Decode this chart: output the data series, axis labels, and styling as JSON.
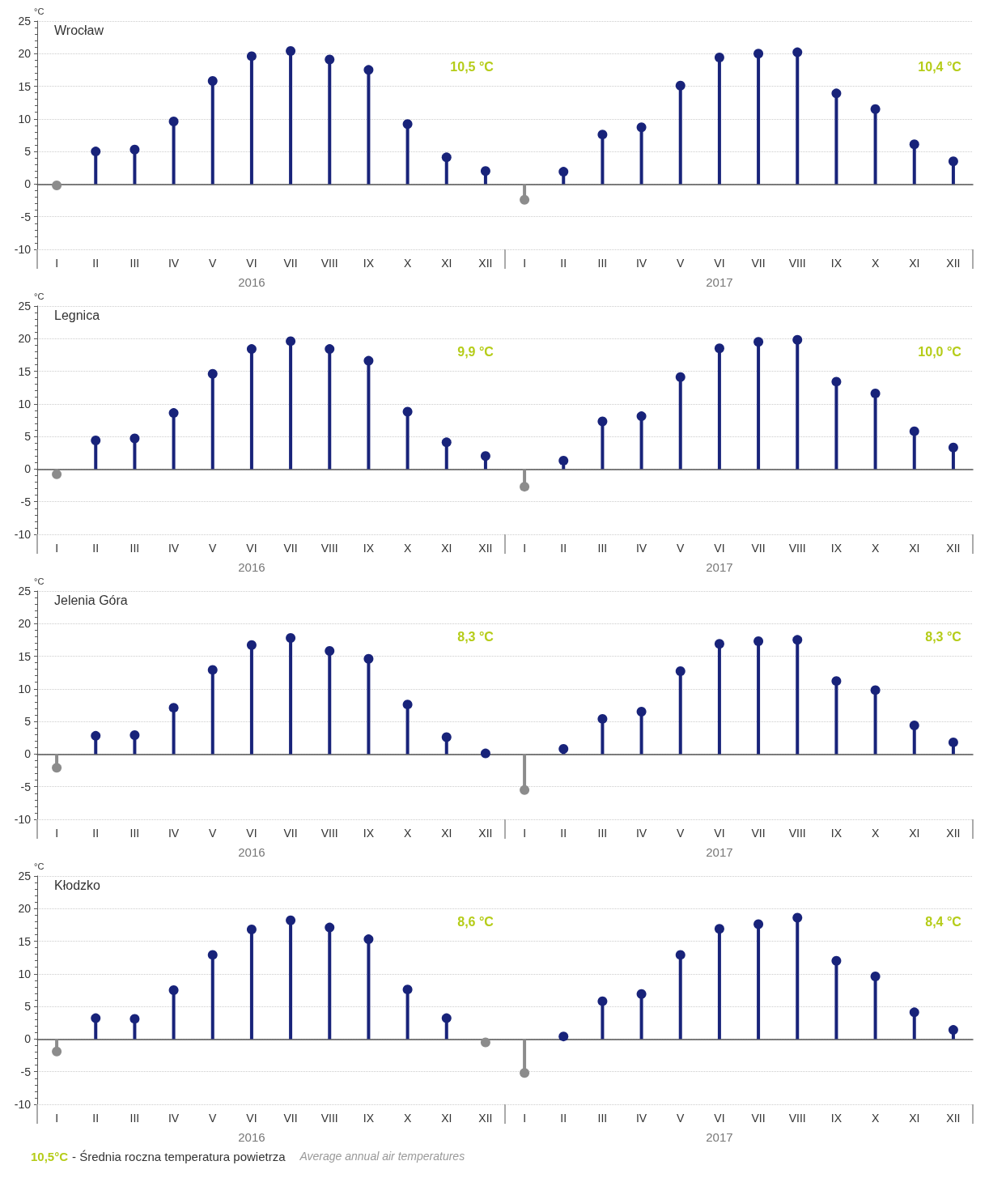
{
  "chart_data": [
    {
      "type": "lollipop",
      "title": "Wrocław",
      "ylabel": "°C",
      "marker": "circle",
      "line_style": "solid",
      "grid": "y",
      "ylim": [
        -10,
        25
      ],
      "yticks": [
        -10,
        -5,
        0,
        5,
        10,
        15,
        20,
        25
      ],
      "categories": [
        "I",
        "II",
        "III",
        "IV",
        "V",
        "VI",
        "VII",
        "VIII",
        "IX",
        "X",
        "XI",
        "XII",
        "I",
        "II",
        "III",
        "IV",
        "V",
        "VI",
        "VII",
        "VIII",
        "IX",
        "X",
        "XI",
        "XII"
      ],
      "values": [
        -0.2,
        5.0,
        5.3,
        9.6,
        15.8,
        19.6,
        20.4,
        19.1,
        17.5,
        9.2,
        4.1,
        2.0,
        -2.4,
        1.9,
        7.6,
        8.7,
        15.1,
        19.4,
        20.0,
        20.2,
        13.9,
        11.5,
        6.1,
        3.5
      ],
      "colors": [
        "#8c8c8c",
        "#18237a",
        "#18237a",
        "#18237a",
        "#18237a",
        "#18237a",
        "#18237a",
        "#18237a",
        "#18237a",
        "#18237a",
        "#18237a",
        "#18237a",
        "#8c8c8c",
        "#18237a",
        "#18237a",
        "#18237a",
        "#18237a",
        "#18237a",
        "#18237a",
        "#18237a",
        "#18237a",
        "#18237a",
        "#18237a",
        "#18237a"
      ],
      "annotations": [
        "10,5 °C",
        "10,4 °C",
        "2016",
        "2017"
      ]
    },
    {
      "type": "lollipop",
      "title": "Legnica",
      "ylabel": "°C",
      "marker": "circle",
      "line_style": "solid",
      "grid": "y",
      "ylim": [
        -10,
        25
      ],
      "yticks": [
        -10,
        -5,
        0,
        5,
        10,
        15,
        20,
        25
      ],
      "categories": [
        "I",
        "II",
        "III",
        "IV",
        "V",
        "VI",
        "VII",
        "VIII",
        "IX",
        "X",
        "XI",
        "XII",
        "I",
        "II",
        "III",
        "IV",
        "V",
        "VI",
        "VII",
        "VIII",
        "IX",
        "X",
        "XI",
        "XII"
      ],
      "values": [
        -0.8,
        4.4,
        4.7,
        8.6,
        14.6,
        18.4,
        19.6,
        18.4,
        16.6,
        8.8,
        4.1,
        2.0,
        -2.7,
        1.3,
        7.3,
        8.1,
        14.1,
        18.5,
        19.5,
        19.8,
        13.4,
        11.6,
        5.8,
        3.3
      ],
      "colors": [
        "#8c8c8c",
        "#18237a",
        "#18237a",
        "#18237a",
        "#18237a",
        "#18237a",
        "#18237a",
        "#18237a",
        "#18237a",
        "#18237a",
        "#18237a",
        "#18237a",
        "#8c8c8c",
        "#18237a",
        "#18237a",
        "#18237a",
        "#18237a",
        "#18237a",
        "#18237a",
        "#18237a",
        "#18237a",
        "#18237a",
        "#18237a",
        "#18237a"
      ],
      "annotations": [
        "9,9 °C",
        "10,0 °C",
        "2016",
        "2017"
      ]
    },
    {
      "type": "lollipop",
      "title": "Jelenia Góra",
      "ylabel": "°C",
      "marker": "circle",
      "line_style": "solid",
      "grid": "y",
      "ylim": [
        -10,
        25
      ],
      "yticks": [
        -10,
        -5,
        0,
        5,
        10,
        15,
        20,
        25
      ],
      "categories": [
        "I",
        "II",
        "III",
        "IV",
        "V",
        "VI",
        "VII",
        "VIII",
        "IX",
        "X",
        "XI",
        "XII",
        "I",
        "II",
        "III",
        "IV",
        "V",
        "VI",
        "VII",
        "VIII",
        "IX",
        "X",
        "XI",
        "XII"
      ],
      "values": [
        -2.1,
        2.8,
        2.9,
        7.1,
        12.9,
        16.7,
        17.8,
        15.8,
        14.6,
        7.6,
        2.6,
        0.1,
        -5.5,
        0.8,
        5.4,
        6.5,
        12.7,
        16.9,
        17.3,
        17.5,
        11.2,
        9.8,
        4.4,
        1.8
      ],
      "colors": [
        "#8c8c8c",
        "#18237a",
        "#18237a",
        "#18237a",
        "#18237a",
        "#18237a",
        "#18237a",
        "#18237a",
        "#18237a",
        "#18237a",
        "#18237a",
        "#18237a",
        "#8c8c8c",
        "#18237a",
        "#18237a",
        "#18237a",
        "#18237a",
        "#18237a",
        "#18237a",
        "#18237a",
        "#18237a",
        "#18237a",
        "#18237a",
        "#18237a"
      ],
      "annotations": [
        "8,3 °C",
        "8,3 °C",
        "2016",
        "2017"
      ]
    },
    {
      "type": "lollipop",
      "title": "Kłodzko",
      "ylabel": "°C",
      "marker": "circle",
      "line_style": "solid",
      "grid": "y",
      "ylim": [
        -10,
        25
      ],
      "yticks": [
        -10,
        -5,
        0,
        5,
        10,
        15,
        20,
        25
      ],
      "categories": [
        "I",
        "II",
        "III",
        "IV",
        "V",
        "VI",
        "VII",
        "VIII",
        "IX",
        "X",
        "XI",
        "XII",
        "I",
        "II",
        "III",
        "IV",
        "V",
        "VI",
        "VII",
        "VIII",
        "IX",
        "X",
        "XI",
        "XII"
      ],
      "values": [
        -1.9,
        3.2,
        3.1,
        7.5,
        12.9,
        16.8,
        18.2,
        17.1,
        15.3,
        7.6,
        3.2,
        -0.5,
        -5.2,
        0.4,
        5.8,
        6.9,
        12.9,
        16.9,
        17.6,
        18.6,
        12.0,
        9.6,
        4.1,
        1.4
      ],
      "colors": [
        "#8c8c8c",
        "#18237a",
        "#18237a",
        "#18237a",
        "#18237a",
        "#18237a",
        "#18237a",
        "#18237a",
        "#18237a",
        "#18237a",
        "#18237a",
        "#8c8c8c",
        "#8c8c8c",
        "#18237a",
        "#18237a",
        "#18237a",
        "#18237a",
        "#18237a",
        "#18237a",
        "#18237a",
        "#18237a",
        "#18237a",
        "#18237a",
        "#18237a"
      ],
      "annotations": [
        "8,6 °C",
        "8,4 °C",
        "2016",
        "2017",
        "10,5°C",
        "- Średnia roczna temperatura powietrza",
        "Average annual air temperatures"
      ]
    }
  ]
}
